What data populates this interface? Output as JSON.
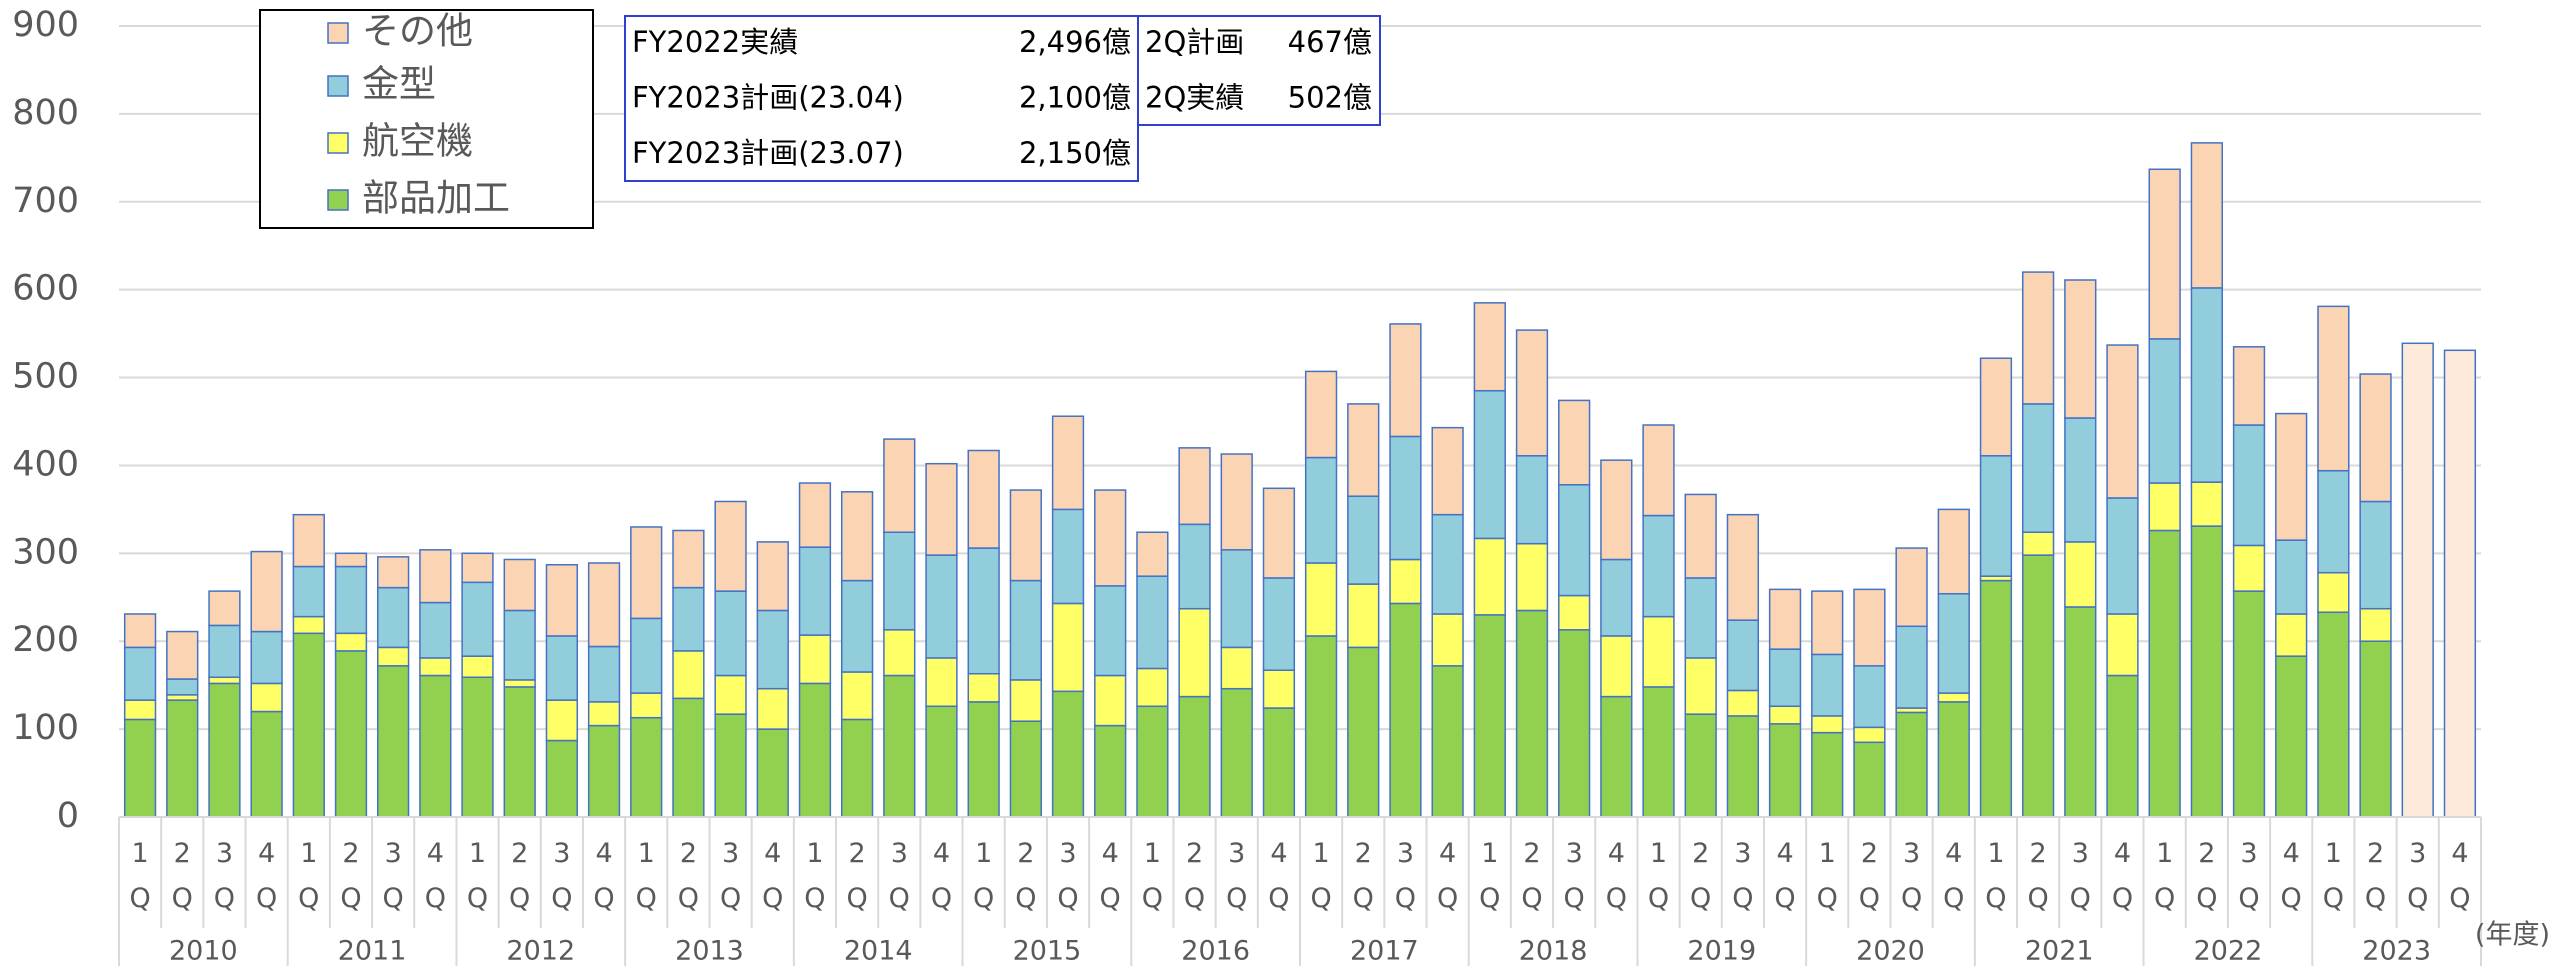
{
  "chart_data": {
    "type": "stacked_bar",
    "categories": [
      "1Q",
      "2Q",
      "3Q",
      "4Q",
      "1Q",
      "2Q",
      "3Q",
      "4Q",
      "1Q",
      "2Q",
      "3Q",
      "4Q",
      "1Q",
      "2Q",
      "3Q",
      "4Q",
      "1Q",
      "2Q",
      "3Q",
      "4Q",
      "1Q",
      "2Q",
      "3Q",
      "4Q",
      "1Q",
      "2Q",
      "3Q",
      "4Q",
      "1Q",
      "2Q",
      "3Q",
      "4Q",
      "1Q",
      "2Q",
      "3Q",
      "4Q",
      "1Q",
      "2Q",
      "3Q",
      "4Q",
      "1Q",
      "2Q",
      "3Q",
      "4Q",
      "1Q",
      "2Q",
      "3Q",
      "4Q",
      "1Q",
      "2Q",
      "3Q",
      "4Q",
      "1Q",
      "2Q",
      "3Q",
      "4Q"
    ],
    "years": [
      "2010",
      "2011",
      "2012",
      "2013",
      "2014",
      "2015",
      "2016",
      "2017",
      "2018",
      "2019",
      "2020",
      "2021",
      "2022",
      "2023"
    ],
    "x_unit": "(年度)",
    "series": [
      {
        "name": "部品加工",
        "color": "#92d050",
        "values": [
          111,
          133,
          152,
          120,
          209,
          189,
          172,
          161,
          159,
          148,
          87,
          104,
          113,
          135,
          117,
          100,
          152,
          111,
          161,
          126,
          131,
          109,
          143,
          104,
          126,
          137,
          146,
          124,
          206,
          193,
          243,
          172,
          230,
          235,
          213,
          137,
          148,
          117,
          115,
          106,
          96,
          85,
          119,
          131,
          269,
          298,
          239,
          161,
          326,
          331,
          257,
          183,
          233,
          200,
          null,
          null
        ]
      },
      {
        "name": "航空機",
        "color": "#ffff66",
        "values": [
          22,
          6,
          7,
          32,
          19,
          20,
          21,
          20,
          24,
          8,
          46,
          27,
          28,
          54,
          44,
          46,
          55,
          54,
          52,
          55,
          32,
          47,
          100,
          57,
          43,
          100,
          47,
          43,
          83,
          72,
          50,
          59,
          87,
          76,
          39,
          69,
          80,
          64,
          29,
          20,
          19,
          17,
          5,
          10,
          5,
          26,
          74,
          70,
          54,
          50,
          52,
          48,
          45,
          37,
          null,
          null
        ]
      },
      {
        "name": "金型",
        "color": "#92cddc",
        "values": [
          60,
          18,
          59,
          59,
          57,
          76,
          68,
          63,
          84,
          79,
          73,
          63,
          85,
          72,
          96,
          89,
          100,
          104,
          111,
          117,
          143,
          113,
          107,
          102,
          105,
          96,
          111,
          105,
          120,
          100,
          140,
          113,
          168,
          100,
          126,
          87,
          115,
          91,
          80,
          65,
          70,
          70,
          93,
          113,
          137,
          146,
          141,
          132,
          164,
          221,
          137,
          84,
          116,
          122,
          null,
          null
        ]
      },
      {
        "name": "その他",
        "color": "#fbd4b4",
        "values": [
          38,
          54,
          39,
          91,
          59,
          15,
          35,
          60,
          33,
          58,
          81,
          95,
          104,
          65,
          102,
          78,
          73,
          101,
          106,
          104,
          111,
          103,
          106,
          109,
          50,
          87,
          109,
          102,
          98,
          105,
          128,
          99,
          100,
          143,
          96,
          113,
          103,
          95,
          120,
          68,
          72,
          87,
          89,
          96,
          111,
          150,
          157,
          174,
          193,
          165,
          89,
          144,
          187,
          145,
          null,
          null
        ]
      }
    ],
    "plan_values": [
      null,
      null,
      null,
      null,
      null,
      null,
      null,
      null,
      null,
      null,
      null,
      null,
      null,
      null,
      null,
      null,
      null,
      null,
      null,
      null,
      null,
      null,
      null,
      null,
      null,
      null,
      null,
      null,
      null,
      null,
      null,
      null,
      null,
      null,
      null,
      null,
      null,
      null,
      null,
      null,
      null,
      null,
      null,
      null,
      null,
      null,
      null,
      null,
      null,
      null,
      null,
      null,
      null,
      null,
      539,
      531
    ],
    "plan_color": "#fdeada",
    "bar_stroke": "#4472c4",
    "ylim": [
      0,
      900
    ],
    "yticks": [
      0,
      100,
      200,
      300,
      400,
      500,
      600,
      700,
      800,
      900
    ],
    "grid": true,
    "legend": "upper left",
    "annotations": [
      {
        "rows": [
          [
            "FY2022実績",
            "2,496億"
          ],
          [
            "FY2023計画(23.04)",
            "2,100億"
          ],
          [
            "FY2023計画(23.07)",
            "2,150億"
          ]
        ]
      },
      {
        "rows": [
          [
            "2Q計画",
            "467億"
          ],
          [
            "2Q実績",
            "502億"
          ]
        ]
      }
    ]
  }
}
